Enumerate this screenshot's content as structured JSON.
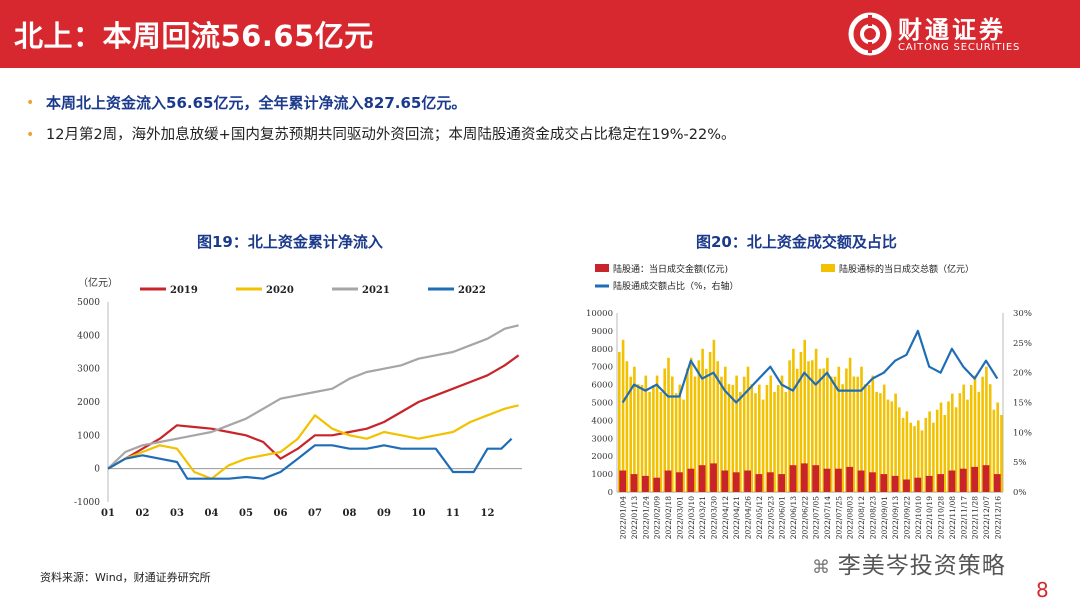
{
  "header": {
    "title": "北上：本周回流56.65亿元",
    "logo_cn": "财通证券",
    "logo_en": "CAITONG SECURITIES"
  },
  "bullets": [
    "本周北上资金流入56.65亿元，全年累计净流入827.65亿元。",
    "12月第2周，海外加息放缓+国内复苏预期共同驱动外资回流；本周陆股通资金成交占比稳定在19%-22%。"
  ],
  "chart_data": [
    {
      "type": "line",
      "title": "图19：北上资金累计净流入",
      "ylabel": "（亿元）",
      "ylim": [
        -1000,
        5000
      ],
      "yticks": [
        "5000",
        "4000",
        "3000",
        "2000",
        "1000",
        "0",
        "-1000"
      ],
      "xticks": [
        "01",
        "02",
        "03",
        "04",
        "05",
        "06",
        "07",
        "08",
        "09",
        "10",
        "11",
        "12"
      ],
      "series": [
        {
          "name": "2019",
          "color": "#c8242b",
          "x": [
            1,
            1.5,
            2,
            2.5,
            3,
            3.5,
            4,
            4.5,
            5,
            5.5,
            6,
            6.5,
            7,
            7.5,
            8,
            8.5,
            9,
            9.5,
            10,
            10.5,
            11,
            11.5,
            12,
            12.5,
            12.9
          ],
          "values": [
            0,
            300,
            600,
            900,
            1300,
            1250,
            1200,
            1100,
            1000,
            800,
            300,
            600,
            1000,
            1000,
            1100,
            1200,
            1400,
            1700,
            2000,
            2200,
            2400,
            2600,
            2800,
            3100,
            3400
          ]
        },
        {
          "name": "2020",
          "color": "#f2c100",
          "x": [
            1,
            1.5,
            2,
            2.5,
            3,
            3.5,
            4,
            4.5,
            5,
            5.5,
            6,
            6.5,
            7,
            7.5,
            8,
            8.5,
            9,
            9.5,
            10,
            10.5,
            11,
            11.5,
            12,
            12.5,
            12.9
          ],
          "values": [
            0,
            300,
            500,
            700,
            600,
            -100,
            -300,
            100,
            300,
            400,
            500,
            900,
            1600,
            1200,
            1000,
            900,
            1100,
            1000,
            900,
            1000,
            1100,
            1400,
            1600,
            1800,
            1900
          ]
        },
        {
          "name": "2021",
          "color": "#a6a6a6",
          "x": [
            1,
            1.5,
            2,
            2.5,
            3,
            3.5,
            4,
            4.5,
            5,
            5.5,
            6,
            6.5,
            7,
            7.5,
            8,
            8.5,
            9,
            9.5,
            10,
            10.5,
            11,
            11.5,
            12,
            12.5,
            12.9
          ],
          "values": [
            0,
            500,
            700,
            800,
            900,
            1000,
            1100,
            1300,
            1500,
            1800,
            2100,
            2200,
            2300,
            2400,
            2700,
            2900,
            3000,
            3100,
            3300,
            3400,
            3500,
            3700,
            3900,
            4200,
            4300
          ]
        },
        {
          "name": "2022",
          "color": "#1f6db6",
          "x": [
            1,
            1.5,
            2,
            2.5,
            3,
            3.3,
            3.6,
            4,
            4.5,
            5,
            5.5,
            6,
            6.5,
            7,
            7.5,
            8,
            8.5,
            9,
            9.5,
            10,
            10.5,
            11,
            11.3,
            11.6,
            12,
            12.4,
            12.7
          ],
          "values": [
            0,
            300,
            400,
            300,
            200,
            -300,
            -300,
            -300,
            -300,
            -250,
            -300,
            -100,
            300,
            700,
            700,
            600,
            600,
            700,
            600,
            600,
            600,
            -100,
            -100,
            -100,
            600,
            600,
            900
          ]
        }
      ]
    },
    {
      "type": "bar",
      "title": "图20：北上资金成交额及占比",
      "legend": [
        "陆股通：当日成交金额(亿元)",
        "陆股通标的当日成交总额（亿元）",
        "陆股通成交额占比（%，右轴）"
      ],
      "colors": {
        "northbound": "#c8242b",
        "market": "#f2c100",
        "ratio": "#1f6db6"
      },
      "ylim": [
        0,
        10000
      ],
      "yticks": [
        "10000",
        "9000",
        "8000",
        "7000",
        "6000",
        "5000",
        "4000",
        "3000",
        "2000",
        "1000",
        "0"
      ],
      "y2lim": [
        0,
        30
      ],
      "y2ticks": [
        "30%",
        "25%",
        "20%",
        "15%",
        "10%",
        "5%",
        "0%"
      ],
      "categories": [
        "2022/01/04",
        "2022/01/13",
        "2022/01/24",
        "2022/02/09",
        "2022/02/18",
        "2022/03/01",
        "2022/03/10",
        "2022/03/21",
        "2022/03/30",
        "2022/04/12",
        "2022/04/21",
        "2022/04/26",
        "2022/05/12",
        "2022/05/23",
        "2022/06/01",
        "2022/06/13",
        "2022/06/22",
        "2022/07/05",
        "2022/07/14",
        "2022/07/25",
        "2022/08/03",
        "2022/08/12",
        "2022/08/23",
        "2022/09/01",
        "2022/09/13",
        "2022/09/22",
        "2022/10/10",
        "2022/10/19",
        "2022/10/28",
        "2022/11/08",
        "2022/11/17",
        "2022/11/28",
        "2022/12/07",
        "2022/12/16"
      ],
      "market_values": [
        8500,
        7000,
        6500,
        6500,
        7500,
        6000,
        7500,
        8000,
        8500,
        7000,
        6500,
        7000,
        6000,
        6500,
        6500,
        8000,
        8500,
        8000,
        7500,
        7000,
        7500,
        7000,
        6500,
        6000,
        5500,
        4500,
        4000,
        4500,
        5000,
        5500,
        6000,
        6500,
        7000,
        5000
      ],
      "northbound_values": [
        1200,
        1000,
        900,
        800,
        1200,
        1100,
        1300,
        1500,
        1600,
        1200,
        1100,
        1200,
        1000,
        1100,
        1000,
        1500,
        1600,
        1500,
        1300,
        1300,
        1400,
        1200,
        1100,
        1000,
        900,
        700,
        800,
        900,
        1000,
        1200,
        1300,
        1400,
        1500,
        1000
      ],
      "ratio_values": [
        15,
        18,
        17,
        18,
        16,
        16,
        22,
        19,
        20,
        17,
        15,
        17,
        19,
        21,
        18,
        17,
        20,
        18,
        20,
        17,
        17,
        17,
        19,
        20,
        22,
        23,
        27,
        21,
        20,
        24,
        21,
        19,
        22,
        19
      ]
    }
  ],
  "source": "资料来源：Wind，财通证券研究所",
  "watermark": "李美岑投资策略",
  "page_number": "8"
}
